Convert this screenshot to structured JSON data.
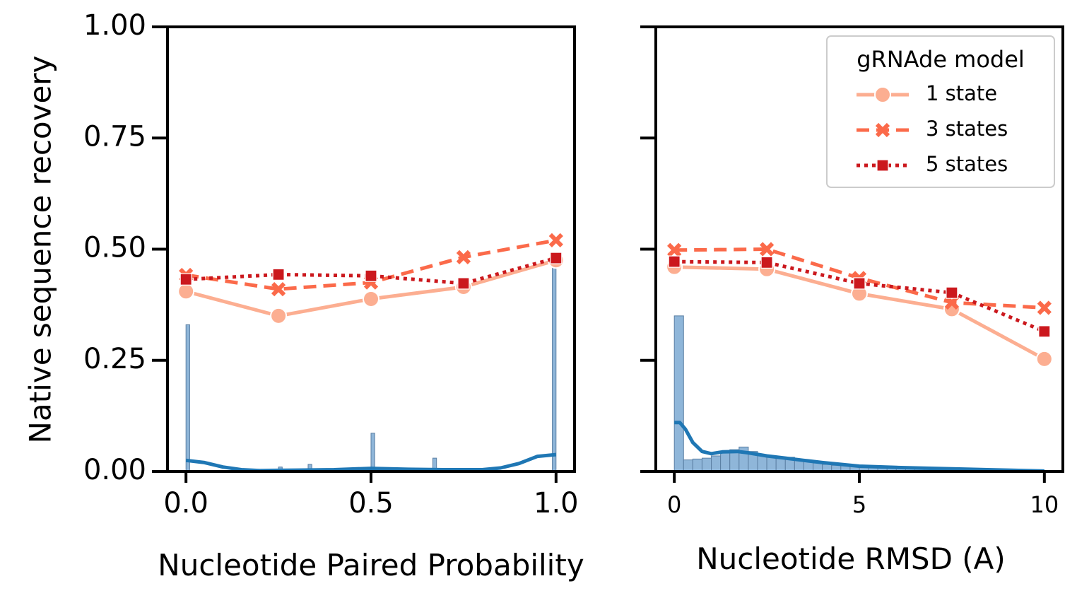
{
  "figure": {
    "ylabel": "Native sequence recovery"
  },
  "chart_data": [
    {
      "type": "line",
      "title": "",
      "xlabel": "Nucleotide Paired Probability",
      "ylabel": "Native sequence recovery",
      "xlim": [
        -0.05,
        1.05
      ],
      "ylim": [
        0,
        1.0
      ],
      "xticks": [
        0.0,
        0.5,
        1.0
      ],
      "xtick_labels": [
        "0.0",
        "0.5",
        "1.0"
      ],
      "yticks": [
        0.0,
        0.25,
        0.5,
        0.75,
        1.0
      ],
      "ytick_labels": [
        "0.00",
        "0.25",
        "0.50",
        "0.75",
        "1.00"
      ],
      "x": [
        0.0,
        0.25,
        0.5,
        0.75,
        1.0
      ],
      "series": [
        {
          "name": "1 state",
          "values": [
            0.405,
            0.35,
            0.388,
            0.415,
            0.475
          ],
          "color": "#fcae91",
          "dash": "solid",
          "marker": "circle"
        },
        {
          "name": "3 states",
          "values": [
            0.442,
            0.41,
            0.425,
            0.482,
            0.52
          ],
          "color": "#fb6a4a",
          "dash": "dashed",
          "marker": "x"
        },
        {
          "name": "5 states",
          "values": [
            0.432,
            0.443,
            0.44,
            0.423,
            0.48
          ],
          "color": "#cb181d",
          "dash": "dotted",
          "marker": "square"
        }
      ],
      "histogram": {
        "color": "#8fb6d9",
        "bins": [
          {
            "start": 0.0,
            "end": 0.01,
            "value": 0.33
          },
          {
            "start": 0.25,
            "end": 0.26,
            "value": 0.01
          },
          {
            "start": 0.33,
            "end": 0.34,
            "value": 0.016
          },
          {
            "start": 0.5,
            "end": 0.51,
            "value": 0.086
          },
          {
            "start": 0.667,
            "end": 0.677,
            "value": 0.03
          },
          {
            "start": 0.75,
            "end": 0.76,
            "value": 0.005
          },
          {
            "start": 0.99,
            "end": 1.0,
            "value": 0.465
          }
        ]
      },
      "kde": {
        "color": "#1f77b4",
        "x": [
          0.0,
          0.05,
          0.1,
          0.15,
          0.2,
          0.3,
          0.4,
          0.5,
          0.6,
          0.7,
          0.8,
          0.85,
          0.9,
          0.95,
          1.0
        ],
        "y": [
          0.025,
          0.02,
          0.01,
          0.004,
          0.002,
          0.003,
          0.004,
          0.007,
          0.005,
          0.004,
          0.004,
          0.008,
          0.018,
          0.034,
          0.038
        ]
      }
    },
    {
      "type": "line",
      "title": "",
      "xlabel": "Nucleotide RMSD (A)",
      "ylabel": "",
      "xlim": [
        -0.5,
        10.5
      ],
      "ylim": [
        0,
        1.0
      ],
      "xticks": [
        0,
        5,
        10
      ],
      "xtick_labels": [
        "0",
        "5",
        "10"
      ],
      "yticks": [
        0.0,
        0.25,
        0.5,
        0.75,
        1.0
      ],
      "x": [
        0,
        2.5,
        5,
        7.5,
        10
      ],
      "series": [
        {
          "name": "1 state",
          "values": [
            0.46,
            0.455,
            0.4,
            0.365,
            0.253
          ],
          "color": "#fcae91",
          "dash": "solid",
          "marker": "circle"
        },
        {
          "name": "3 states",
          "values": [
            0.498,
            0.5,
            0.435,
            0.38,
            0.368
          ],
          "color": "#fb6a4a",
          "dash": "dashed",
          "marker": "x"
        },
        {
          "name": "5 states",
          "values": [
            0.472,
            0.47,
            0.423,
            0.402,
            0.315
          ],
          "color": "#cb181d",
          "dash": "dotted",
          "marker": "square"
        }
      ],
      "histogram": {
        "color": "#8fb6d9",
        "bins": [
          {
            "start": 0.0,
            "end": 0.25,
            "value": 0.35
          },
          {
            "start": 0.25,
            "end": 0.5,
            "value": 0.026
          },
          {
            "start": 0.5,
            "end": 0.75,
            "value": 0.028
          },
          {
            "start": 0.75,
            "end": 1.0,
            "value": 0.03
          },
          {
            "start": 1.0,
            "end": 1.25,
            "value": 0.035
          },
          {
            "start": 1.25,
            "end": 1.5,
            "value": 0.042
          },
          {
            "start": 1.5,
            "end": 1.75,
            "value": 0.049
          },
          {
            "start": 1.75,
            "end": 2.0,
            "value": 0.055
          },
          {
            "start": 2.0,
            "end": 2.25,
            "value": 0.045
          },
          {
            "start": 2.25,
            "end": 2.5,
            "value": 0.038
          },
          {
            "start": 2.5,
            "end": 2.75,
            "value": 0.034
          },
          {
            "start": 2.75,
            "end": 3.0,
            "value": 0.031
          },
          {
            "start": 3.0,
            "end": 3.25,
            "value": 0.032
          },
          {
            "start": 3.25,
            "end": 3.5,
            "value": 0.026
          },
          {
            "start": 3.5,
            "end": 3.75,
            "value": 0.022
          },
          {
            "start": 3.75,
            "end": 4.0,
            "value": 0.019
          },
          {
            "start": 4.0,
            "end": 4.25,
            "value": 0.016
          },
          {
            "start": 4.25,
            "end": 4.5,
            "value": 0.014
          },
          {
            "start": 4.5,
            "end": 4.75,
            "value": 0.013
          },
          {
            "start": 4.75,
            "end": 5.0,
            "value": 0.012
          },
          {
            "start": 5.0,
            "end": 5.25,
            "value": 0.011
          },
          {
            "start": 5.25,
            "end": 5.5,
            "value": 0.01
          },
          {
            "start": 5.5,
            "end": 5.75,
            "value": 0.009
          },
          {
            "start": 5.75,
            "end": 6.0,
            "value": 0.009
          },
          {
            "start": 6.0,
            "end": 6.25,
            "value": 0.008
          },
          {
            "start": 6.25,
            "end": 6.5,
            "value": 0.007
          },
          {
            "start": 6.5,
            "end": 6.75,
            "value": 0.007
          },
          {
            "start": 6.75,
            "end": 7.0,
            "value": 0.006
          },
          {
            "start": 7.0,
            "end": 7.25,
            "value": 0.005
          },
          {
            "start": 7.25,
            "end": 7.5,
            "value": 0.005
          },
          {
            "start": 7.5,
            "end": 7.75,
            "value": 0.004
          },
          {
            "start": 7.75,
            "end": 8.0,
            "value": 0.004
          },
          {
            "start": 8.0,
            "end": 8.25,
            "value": 0.003
          },
          {
            "start": 8.25,
            "end": 8.5,
            "value": 0.003
          },
          {
            "start": 8.5,
            "end": 8.75,
            "value": 0.003
          },
          {
            "start": 8.75,
            "end": 9.0,
            "value": 0.002
          },
          {
            "start": 9.0,
            "end": 9.25,
            "value": 0.002
          },
          {
            "start": 9.25,
            "end": 9.5,
            "value": 0.002
          },
          {
            "start": 9.5,
            "end": 9.75,
            "value": 0.001
          },
          {
            "start": 9.75,
            "end": 10.0,
            "value": 0.001
          }
        ]
      },
      "kde": {
        "color": "#1f77b4",
        "x": [
          0.0,
          0.15,
          0.3,
          0.5,
          0.75,
          1.0,
          1.3,
          1.7,
          2.0,
          2.5,
          3.0,
          3.5,
          4.0,
          5.0,
          6.0,
          7.0,
          8.0,
          9.0,
          10.0
        ],
        "y": [
          0.11,
          0.11,
          0.095,
          0.065,
          0.045,
          0.04,
          0.044,
          0.045,
          0.042,
          0.035,
          0.03,
          0.025,
          0.02,
          0.012,
          0.009,
          0.007,
          0.005,
          0.003,
          0.001
        ]
      },
      "legend": {
        "title": "gRNAde model",
        "position": "top-right",
        "entries": [
          "1 state",
          "3 states",
          "5 states"
        ]
      }
    }
  ]
}
